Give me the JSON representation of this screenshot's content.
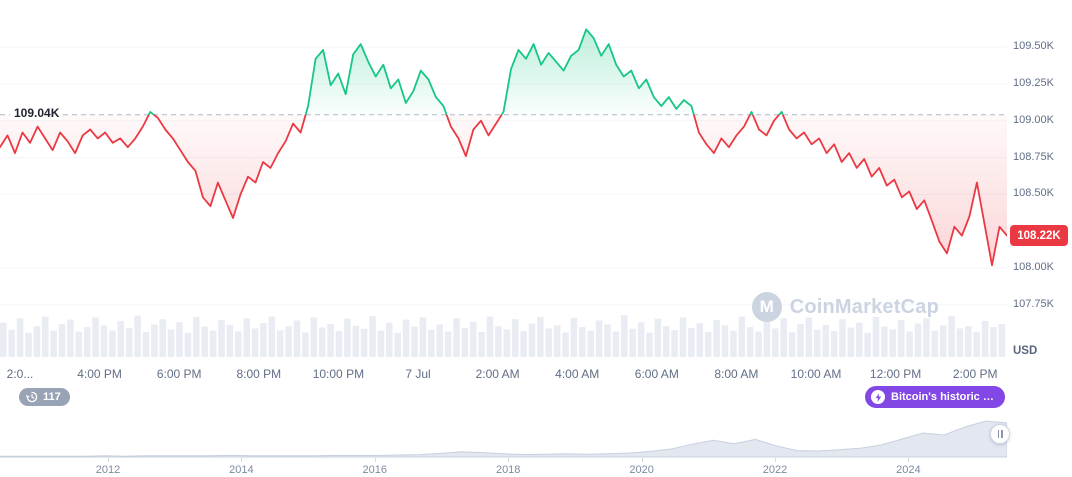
{
  "chart": {
    "open_price_label": "109.04K",
    "current_price_label": "108.22K",
    "current_price": 108.22,
    "currency": "USD",
    "accent_green": "#16c784",
    "accent_red": "#ea3943",
    "fill_gray": "#e9ecf3"
  },
  "watermark": {
    "logo_letter": "M",
    "text": "CoinMarketCap"
  },
  "toolbar": {
    "count": "117",
    "promo_label": "Bitcoin's historic $..."
  },
  "chart_data": {
    "type": "line",
    "title": "Bitcoin price last 24h (USD, thousands)",
    "open_threshold": 109.04,
    "ylim": [
      107.75,
      109.7
    ],
    "y_ticks": [
      {
        "label": "109.50K",
        "value": 109.5
      },
      {
        "label": "109.25K",
        "value": 109.25
      },
      {
        "label": "109.00K",
        "value": 109.0
      },
      {
        "label": "108.75K",
        "value": 108.75
      },
      {
        "label": "108.50K",
        "value": 108.5
      },
      {
        "label": "108.00K",
        "value": 108.0
      },
      {
        "label": "107.75K",
        "value": 107.75
      }
    ],
    "x_ticks": [
      "2:0...",
      "4:00 PM",
      "6:00 PM",
      "8:00 PM",
      "10:00 PM",
      "7 Jul",
      "2:00 AM",
      "4:00 AM",
      "6:00 AM",
      "8:00 AM",
      "10:00 AM",
      "12:00 PM",
      "2:00 PM"
    ],
    "prices": [
      108.82,
      108.9,
      108.78,
      108.92,
      108.85,
      108.96,
      108.88,
      108.8,
      108.92,
      108.86,
      108.78,
      108.9,
      108.94,
      108.88,
      108.92,
      108.85,
      108.88,
      108.82,
      108.88,
      108.96,
      109.06,
      109.02,
      108.94,
      108.88,
      108.8,
      108.72,
      108.66,
      108.48,
      108.42,
      108.58,
      108.46,
      108.34,
      108.5,
      108.62,
      108.58,
      108.72,
      108.68,
      108.78,
      108.86,
      108.98,
      108.92,
      109.1,
      109.42,
      109.48,
      109.24,
      109.32,
      109.18,
      109.45,
      109.52,
      109.4,
      109.3,
      109.38,
      109.22,
      109.28,
      109.12,
      109.2,
      109.34,
      109.28,
      109.16,
      109.1,
      108.96,
      108.88,
      108.76,
      108.94,
      109.0,
      108.9,
      108.98,
      109.06,
      109.35,
      109.48,
      109.42,
      109.52,
      109.38,
      109.46,
      109.4,
      109.34,
      109.44,
      109.48,
      109.62,
      109.56,
      109.44,
      109.52,
      109.38,
      109.3,
      109.34,
      109.22,
      109.28,
      109.16,
      109.1,
      109.16,
      109.08,
      109.14,
      109.1,
      108.92,
      108.84,
      108.78,
      108.88,
      108.82,
      108.9,
      108.96,
      109.06,
      108.94,
      108.9,
      109.0,
      109.06,
      108.94,
      108.88,
      108.92,
      108.84,
      108.88,
      108.78,
      108.84,
      108.72,
      108.78,
      108.68,
      108.74,
      108.62,
      108.68,
      108.56,
      108.6,
      108.48,
      108.52,
      108.4,
      108.46,
      108.32,
      108.18,
      108.1,
      108.28,
      108.22,
      108.35,
      108.58,
      108.3,
      108.02,
      108.28,
      108.22
    ],
    "volume": [
      0.78,
      0.62,
      0.88,
      0.55,
      0.7,
      0.92,
      0.6,
      0.75,
      0.85,
      0.58,
      0.68,
      0.9,
      0.72,
      0.6,
      0.82,
      0.66,
      0.94,
      0.57,
      0.74,
      0.86,
      0.63,
      0.79,
      0.55,
      0.91,
      0.69,
      0.6,
      0.84,
      0.73,
      0.58,
      0.88,
      0.65,
      0.77,
      0.92,
      0.61,
      0.7,
      0.83,
      0.56,
      0.9,
      0.67,
      0.75,
      0.59,
      0.87,
      0.71,
      0.64,
      0.93,
      0.6,
      0.78,
      0.55,
      0.85,
      0.69,
      0.9,
      0.62,
      0.74,
      0.58,
      0.88,
      0.66,
      0.8,
      0.57,
      0.92,
      0.7,
      0.63,
      0.86,
      0.59,
      0.76,
      0.91,
      0.65,
      0.72,
      0.56,
      0.89,
      0.68,
      0.6,
      0.83,
      0.74,
      0.58,
      0.95,
      0.64,
      0.79,
      0.55,
      0.87,
      0.7,
      0.61,
      0.9,
      0.66,
      0.77,
      0.57,
      0.84,
      0.72,
      0.6,
      0.92,
      0.68,
      0.58,
      0.8,
      0.65,
      0.88,
      0.56,
      0.75,
      0.9,
      0.62,
      0.73,
      0.59,
      0.86,
      0.67,
      0.78,
      0.55,
      0.91,
      0.69,
      0.63,
      0.84,
      0.58,
      0.76,
      0.88,
      0.6,
      0.72,
      0.93,
      0.65,
      0.7,
      0.57,
      0.82,
      0.68,
      0.75
    ],
    "brush": {
      "years": [
        "2012",
        "2014",
        "2016",
        "2018",
        "2020",
        "2022",
        "2024"
      ],
      "values": [
        0.02,
        0.02,
        0.02,
        0.02,
        0.02,
        0.03,
        0.02,
        0.03,
        0.03,
        0.03,
        0.03,
        0.04,
        0.03,
        0.03,
        0.03,
        0.03,
        0.04,
        0.04,
        0.04,
        0.05,
        0.06,
        0.09,
        0.13,
        0.11,
        0.08,
        0.06,
        0.07,
        0.08,
        0.07,
        0.08,
        0.1,
        0.14,
        0.2,
        0.32,
        0.42,
        0.33,
        0.44,
        0.28,
        0.16,
        0.15,
        0.18,
        0.22,
        0.3,
        0.45,
        0.6,
        0.55,
        0.75,
        0.9,
        0.85
      ]
    }
  }
}
